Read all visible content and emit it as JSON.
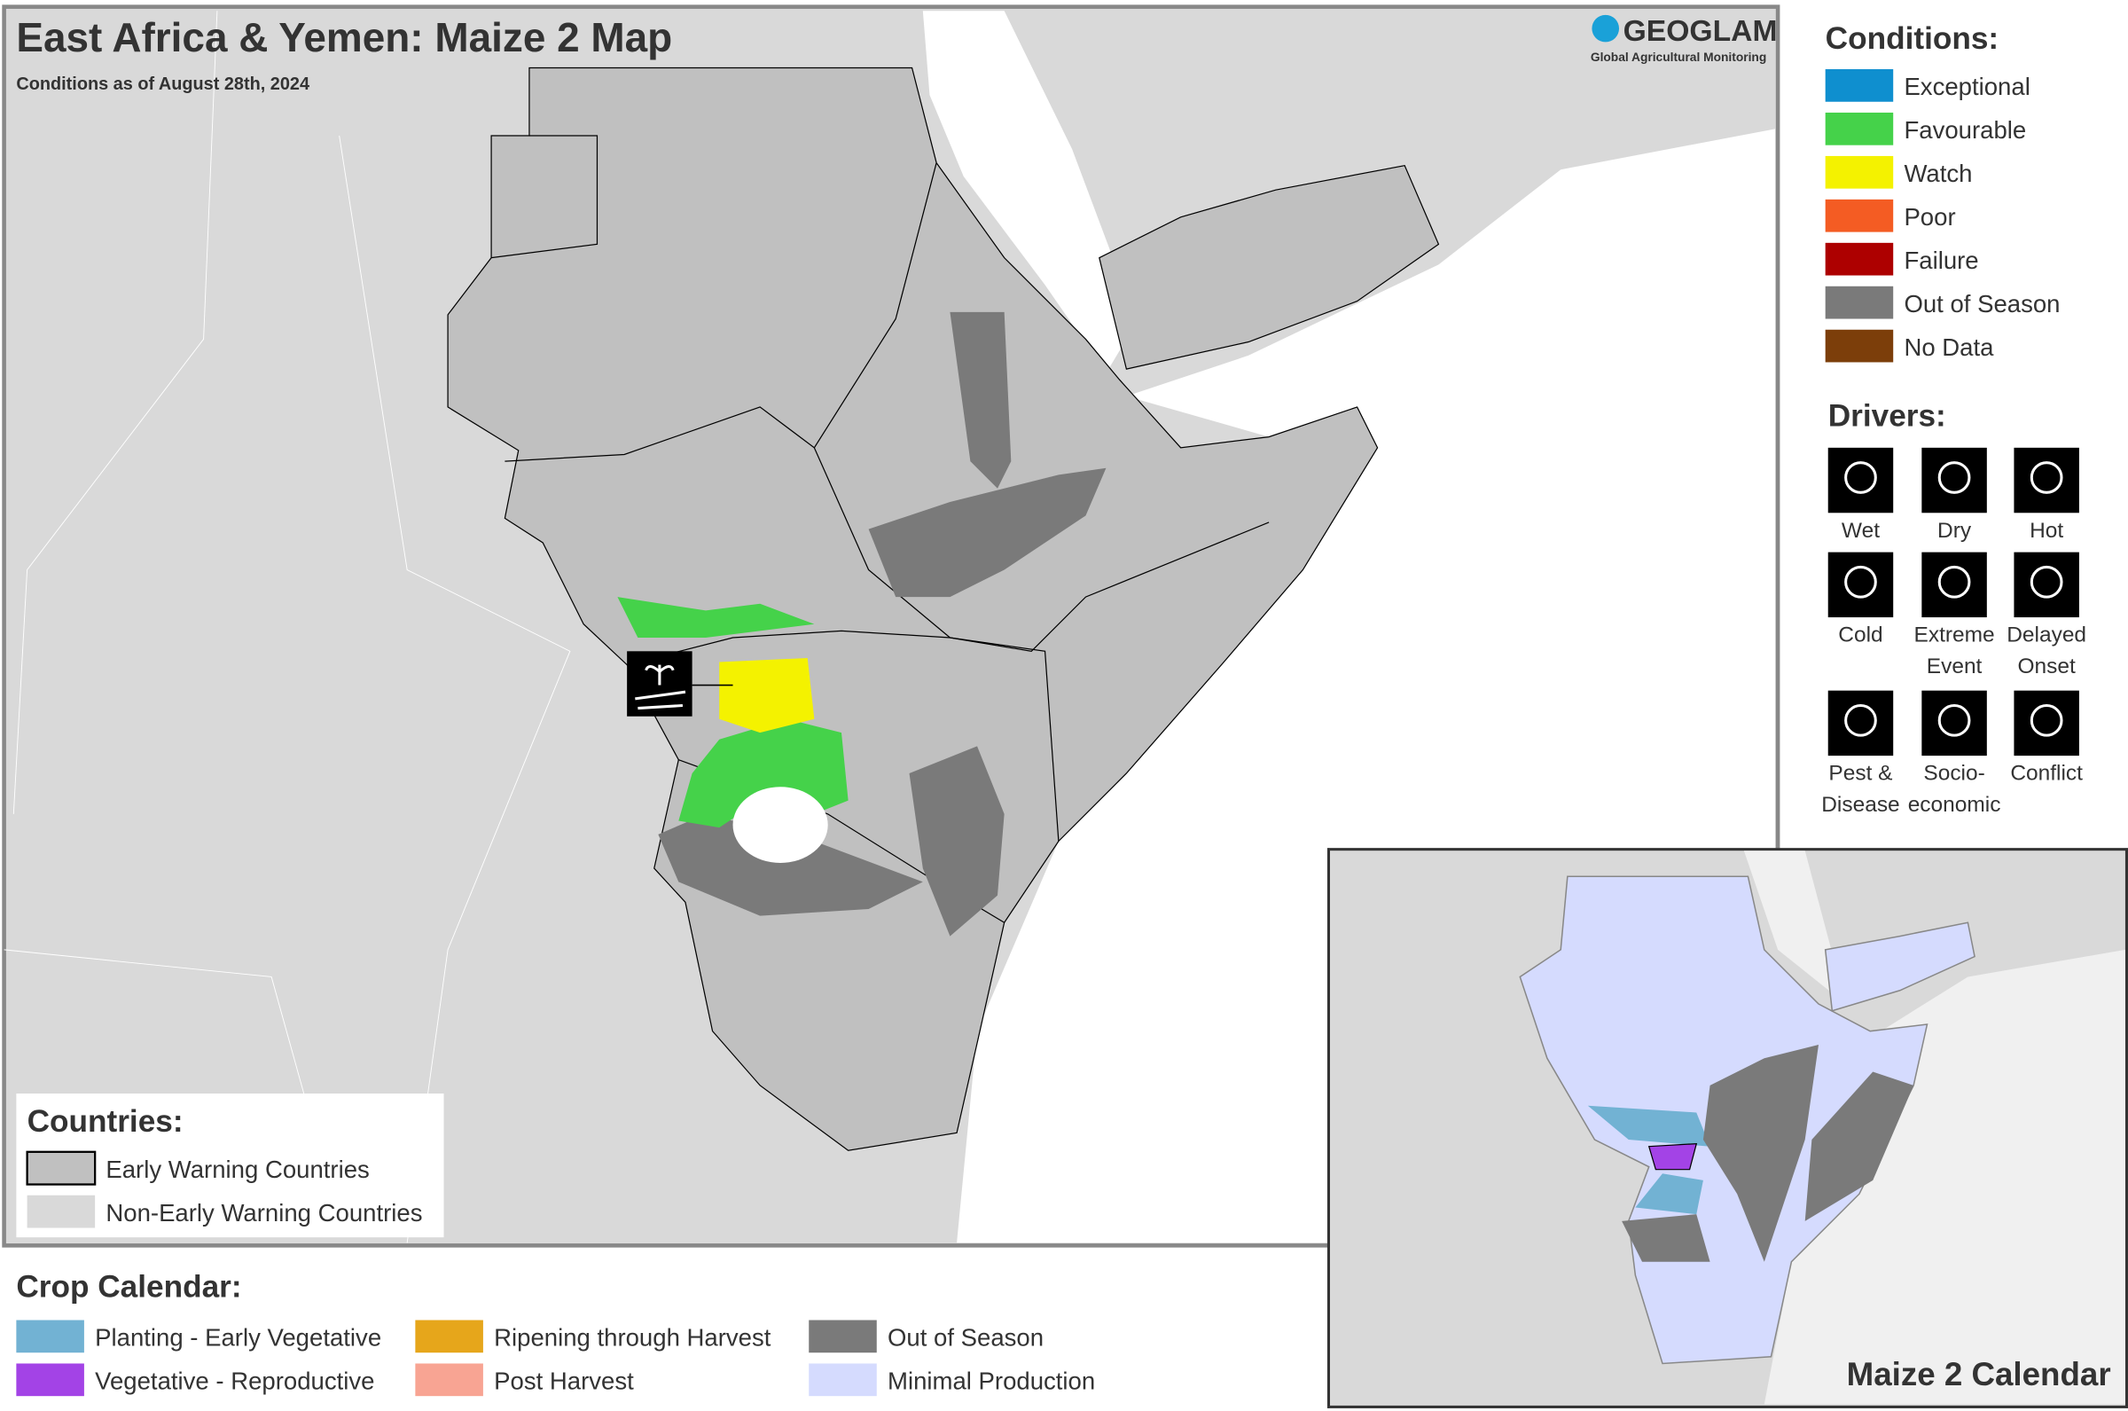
{
  "header": {
    "title": "East Africa & Yemen: Maize 2 Map",
    "subtitle": "Conditions as of August 28th, 2024"
  },
  "logo": {
    "name": "GEOGLAM",
    "tagline": "Global Agricultural Monitoring"
  },
  "conditions": {
    "title": "Conditions:",
    "items": [
      {
        "label": "Exceptional",
        "color": "#0f8fcf"
      },
      {
        "label": "Favourable",
        "color": "#45d24a"
      },
      {
        "label": "Watch",
        "color": "#f4f200"
      },
      {
        "label": "Poor",
        "color": "#f45c23"
      },
      {
        "label": "Failure",
        "color": "#ad0000"
      },
      {
        "label": "Out of Season",
        "color": "#7a7a7a"
      },
      {
        "label": "No Data",
        "color": "#7c3e0a"
      }
    ]
  },
  "drivers": {
    "title": "Drivers:",
    "items": [
      {
        "label": [
          "Wet"
        ]
      },
      {
        "label": [
          "Dry"
        ]
      },
      {
        "label": [
          "Hot"
        ]
      },
      {
        "label": [
          "Cold"
        ]
      },
      {
        "label": [
          "Extreme",
          "Event"
        ]
      },
      {
        "label": [
          "Delayed",
          "Onset"
        ]
      },
      {
        "label": [
          "Pest &",
          "Disease"
        ]
      },
      {
        "label": [
          "Socio-",
          "economic"
        ]
      },
      {
        "label": [
          "Conflict"
        ]
      }
    ]
  },
  "countries": {
    "title": "Countries:",
    "items": [
      {
        "label": "Early Warning Countries",
        "color": "#c0c0c0",
        "border": "#000000"
      },
      {
        "label": "Non-Early Warning Countries",
        "color": "#d9d9d9",
        "border": "none"
      }
    ]
  },
  "crop_calendar": {
    "title": "Crop Calendar:",
    "items": [
      {
        "label": "Planting - Early Vegetative",
        "color": "#72b2d3"
      },
      {
        "label": "Vegetative - Reproductive",
        "color": "#a343e6"
      },
      {
        "label": "Ripening through Harvest",
        "color": "#e6a61b"
      },
      {
        "label": "Post Harvest",
        "color": "#f8a493"
      },
      {
        "label": "Out of Season",
        "color": "#7a7a7a"
      },
      {
        "label": "Minimal Production",
        "color": "#d5dbfe"
      }
    ]
  },
  "inset": {
    "title": "Maize 2 Calendar"
  }
}
